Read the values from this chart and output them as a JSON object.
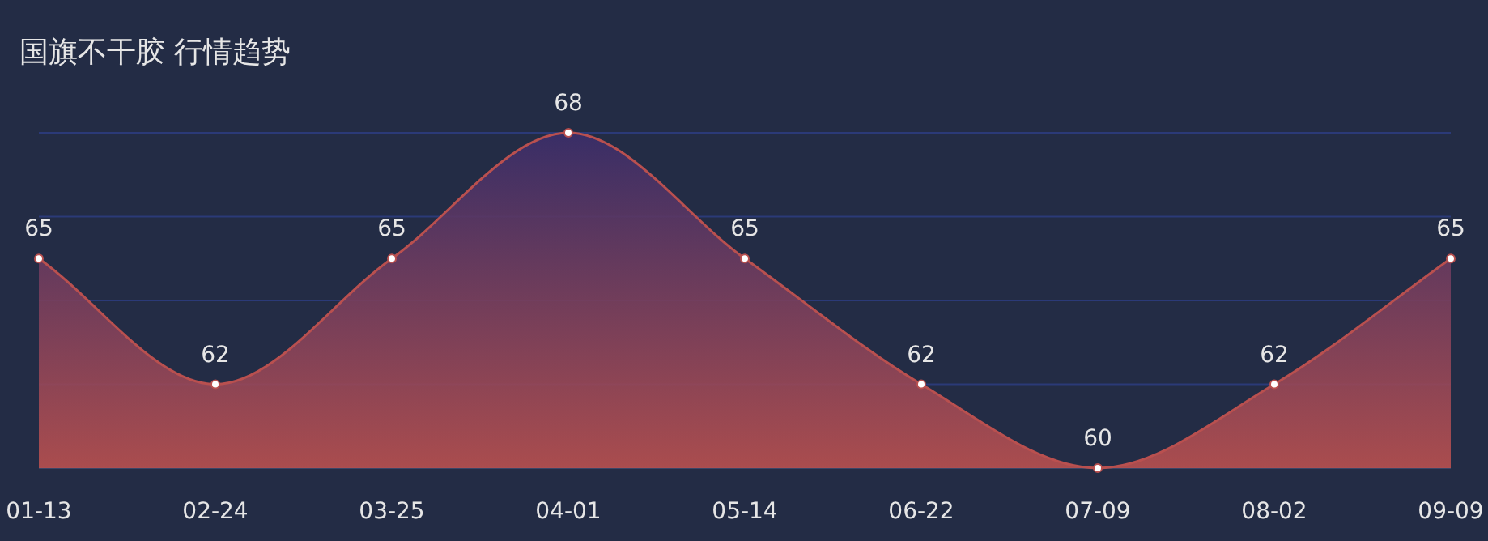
{
  "chart_data": {
    "type": "area",
    "title": "国旗不干胶 行情趋势",
    "categories": [
      "01-13",
      "02-24",
      "03-25",
      "04-01",
      "05-14",
      "06-22",
      "07-09",
      "08-02",
      "09-09"
    ],
    "values": [
      65,
      62,
      65,
      68,
      65,
      62,
      60,
      62,
      65
    ],
    "color": "#b9504f",
    "ylim": [
      60,
      68
    ],
    "yticks": [
      {
        "value": 60,
        "label": null
      },
      {
        "value": 62,
        "label": null
      },
      {
        "value": 64,
        "label": null
      },
      {
        "value": 66,
        "label": null
      },
      {
        "value": 68,
        "label": null
      }
    ],
    "grid": "y",
    "tick_labels": "x",
    "data_labels": true,
    "marker": "circle"
  }
}
